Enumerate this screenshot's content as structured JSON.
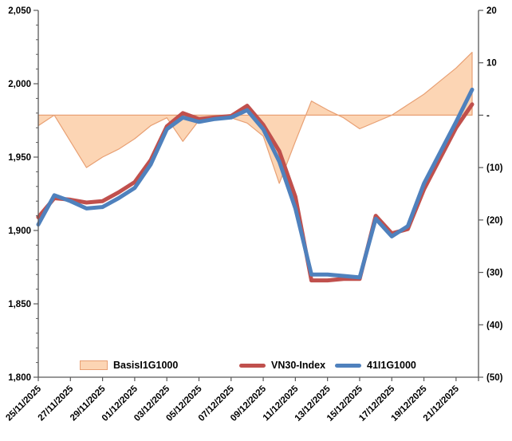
{
  "chart_data": {
    "type": "line",
    "subtype": "combo: area series on right axis + two line series on left axis",
    "title": "",
    "categories": [
      "25/11/2025",
      "26/11/2025",
      "27/11/2025",
      "28/11/2025",
      "29/11/2025",
      "30/11/2025",
      "01/12/2025",
      "02/12/2025",
      "03/12/2025",
      "04/12/2025",
      "05/12/2025",
      "06/12/2025",
      "07/12/2025",
      "08/12/2025",
      "09/12/2025",
      "10/12/2025",
      "11/12/2025",
      "12/12/2025",
      "13/12/2025",
      "14/12/2025",
      "15/12/2025",
      "16/12/2025",
      "17/12/2025",
      "18/12/2025",
      "19/12/2025",
      "20/12/2025",
      "21/12/2025",
      "22/12/2025"
    ],
    "x_tick_labels_shown": [
      "25/11/2025",
      "27/11/2025",
      "29/11/2025",
      "01/12/2025",
      "03/12/2025",
      "05/12/2025",
      "07/12/2025",
      "09/12/2025",
      "11/12/2025",
      "13/12/2025",
      "15/12/2025",
      "17/12/2025",
      "19/12/2025",
      "21/12/2025"
    ],
    "series": [
      {
        "name": "BasisI1G1000",
        "type": "area",
        "axis": "right",
        "fill_color": "#FCD5B4",
        "outline_color": "#E8A074",
        "values": [
          -2,
          0,
          -5,
          -10,
          -8,
          -6.5,
          -4.5,
          -2,
          -0.5,
          -5,
          -1,
          -0.5,
          -0.5,
          -1.5,
          -4,
          -13,
          -5,
          2.7,
          1,
          -0.5,
          -2.6,
          -1.3,
          0,
          2,
          4,
          6.5,
          9,
          12
        ]
      },
      {
        "name": "VN30-Index",
        "type": "line",
        "axis": "left",
        "color": "#C0504D",
        "values": [
          1909,
          1922,
          1921,
          1919,
          1920,
          1926,
          1933,
          1948,
          1971,
          1980,
          1976,
          1977,
          1978,
          1985,
          1972,
          1954,
          1923,
          1866,
          1866,
          1867,
          1867,
          1910,
          1898,
          1901,
          1928,
          1949,
          1970,
          1986
        ]
      },
      {
        "name": "41I1G1000",
        "type": "line",
        "axis": "left",
        "color": "#4F81BD",
        "values": [
          1904,
          1924,
          1920,
          1915,
          1916,
          1922,
          1929,
          1945,
          1969,
          1977,
          1974,
          1976,
          1977,
          1982,
          1969,
          1947,
          1915,
          1870,
          1870,
          1869,
          1868,
          1908,
          1896,
          1903,
          1932,
          1953,
          1974,
          1996
        ]
      }
    ],
    "left_axis": {
      "min": 1800,
      "max": 2050,
      "major_step": 50,
      "minor_step": 10,
      "labels": [
        "2,050",
        "2,000",
        "1,950",
        "1,900",
        "1,850",
        "1,800"
      ]
    },
    "right_axis": {
      "min": -50,
      "max": 20,
      "major_step": 10,
      "labels": [
        "20",
        "10",
        "-",
        "(10)",
        "(20)",
        "(30)",
        "(40)",
        "(50)"
      ]
    },
    "grid": "off",
    "legend": {
      "position": "bottom-inside",
      "items": [
        {
          "label": "BasisI1G1000",
          "swatch": "area-rect"
        },
        {
          "label": "VN30-Index",
          "swatch": "thick-line"
        },
        {
          "label": "41I1G1000",
          "swatch": "thick-line"
        }
      ]
    },
    "colors": {
      "axis_line": "#595959",
      "text": "#000000",
      "background": "#FFFFFF"
    }
  }
}
